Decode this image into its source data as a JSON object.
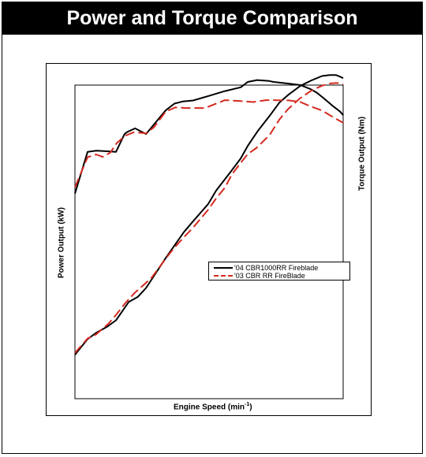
{
  "title": "Power and Torque Comparison",
  "chart_data": {
    "type": "line",
    "title": "Power and Torque Comparison",
    "xlabel": "Engine Speed (min",
    "xlabel_sup": "-1",
    "ylabel_left": "Power Output (kW)",
    "ylabel_right": "Torque Output (Nm)",
    "grid": false,
    "legend_placement": "center-right",
    "xlim": [
      0,
      100
    ],
    "ylim": [
      0,
      100
    ],
    "series": [
      {
        "name": "'04 CBR1000RR Fireblade",
        "metric": "torque",
        "color": "#000000",
        "style": "solid",
        "x": [
          0,
          4.7,
          7.9,
          12.1,
          15.3,
          18.5,
          19.4,
          22.4,
          26.5,
          33.8,
          37.1,
          40.3,
          44.1,
          49.7,
          55.9,
          61.8,
          64.4,
          67.9,
          72.4,
          74.1,
          79.4,
          84.1,
          87.9,
          90.0,
          92.9,
          95.9,
          98.8,
          100
        ],
        "y": [
          65.4,
          78.7,
          79.1,
          78.9,
          78.7,
          84.4,
          85.0,
          86.2,
          84.4,
          91.9,
          94.1,
          94.8,
          95.1,
          96.5,
          98.1,
          99.3,
          101.0,
          101.6,
          101.3,
          101.0,
          100.5,
          100.0,
          98.7,
          97.7,
          95.7,
          93.5,
          91.6,
          90.4
        ]
      },
      {
        "name": "'04 CBR1000RR Fireblade",
        "metric": "power",
        "color": "#000000",
        "style": "solid",
        "x": [
          0,
          4.7,
          7.9,
          12.1,
          15.3,
          17.4,
          20.0,
          23.5,
          26.5,
          33.8,
          40.6,
          44.1,
          49.7,
          52.6,
          58.2,
          61.8,
          64.4,
          68.2,
          72.4,
          76.2,
          79.4,
          84.1,
          88.2,
          92.1,
          95.0,
          97.4,
          99.1,
          100
        ],
        "y": [
          14.0,
          19.0,
          21.0,
          23.0,
          25.0,
          27.6,
          30.8,
          32.5,
          35.3,
          44.8,
          53.1,
          56.6,
          62.1,
          66.3,
          72.5,
          76.6,
          80.6,
          85.4,
          90.0,
          94.4,
          96.8,
          99.8,
          101.5,
          102.9,
          103.2,
          103.2,
          102.6,
          102.2
        ]
      },
      {
        "name": "'03 CBR RR FireBlade",
        "metric": "torque",
        "color": "#d42a20",
        "style": "dashed",
        "x": [
          0,
          4.7,
          7.9,
          10.3,
          13.2,
          15.6,
          18.8,
          22.1,
          26.5,
          29.4,
          33.8,
          37.4,
          41.2,
          48.5,
          55.9,
          61.8,
          66.5,
          71.2,
          74.1,
          80.0,
          84.1,
          88.2,
          92.1,
          95.0,
          97.4,
          100
        ],
        "y": [
          67.4,
          77.0,
          77.9,
          77.1,
          78.5,
          81.5,
          83.9,
          85.0,
          84.6,
          86.5,
          91.5,
          92.9,
          92.7,
          92.7,
          95.2,
          94.9,
          94.6,
          95.2,
          95.2,
          95.1,
          94.6,
          93.1,
          91.9,
          90.4,
          89.2,
          88.0
        ]
      },
      {
        "name": "'03 CBR RR FireBlade",
        "metric": "power",
        "color": "#d42a20",
        "style": "dashed",
        "x": [
          0,
          4.7,
          7.9,
          12.6,
          15.6,
          18.8,
          22.1,
          25.0,
          28.5,
          33.8,
          36.8,
          40.3,
          44.1,
          49.7,
          52.6,
          55.9,
          58.5,
          61.8,
          64.4,
          67.6,
          72.6,
          76.2,
          79.4,
          83.8,
          88.2,
          92.1,
          95.0,
          97.4,
          99.1,
          100
        ],
        "y": [
          14.6,
          19.2,
          20.5,
          24.0,
          27.0,
          30.5,
          33.6,
          35.8,
          38.5,
          44.6,
          47.9,
          51.2,
          54.6,
          60.3,
          63.8,
          67.3,
          71.5,
          75.2,
          78.0,
          79.9,
          84.1,
          89.0,
          92.3,
          95.7,
          98.3,
          99.8,
          100.5,
          100.7,
          100.5,
          100.3
        ]
      }
    ],
    "legend": [
      {
        "label": "'04 CBR1000RR Fireblade",
        "color": "#000000",
        "style": "solid"
      },
      {
        "label": "'03 CBR RR FireBlade",
        "color": "#d42a20",
        "style": "dashed"
      }
    ]
  }
}
